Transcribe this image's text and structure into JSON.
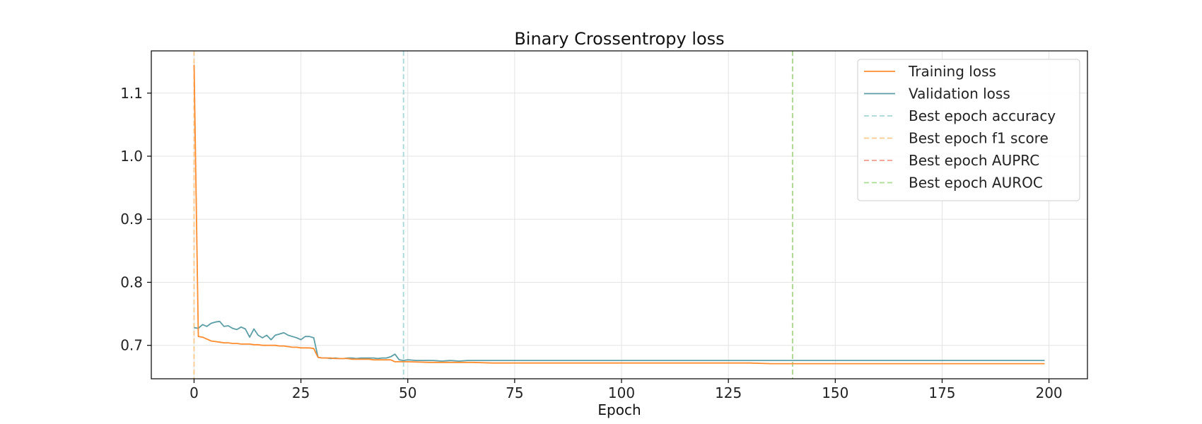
{
  "chart_data": {
    "type": "line",
    "title": "Binary Crossentropy loss",
    "xlabel": "Epoch",
    "ylabel": "",
    "xlim": [
      -10,
      209
    ],
    "ylim": [
      0.647,
      1.167
    ],
    "xticks": [
      0,
      25,
      50,
      75,
      100,
      125,
      150,
      175,
      200
    ],
    "yticks": [
      0.7,
      0.8,
      0.9,
      1.0,
      1.1
    ],
    "ytick_labels": [
      "0.7",
      "0.8",
      "0.9",
      "1.0",
      "1.1"
    ],
    "grid": true,
    "legend_position": "top-right",
    "series": [
      {
        "name": "Training loss",
        "color": "#ff8c2e",
        "x": [
          0,
          1,
          2,
          3,
          4,
          5,
          6,
          7,
          8,
          9,
          10,
          11,
          12,
          13,
          14,
          15,
          16,
          17,
          18,
          19,
          20,
          21,
          22,
          23,
          24,
          25,
          26,
          27,
          28,
          29,
          30,
          31,
          32,
          33,
          34,
          35,
          36,
          37,
          38,
          39,
          40,
          41,
          42,
          43,
          44,
          45,
          46,
          47,
          48,
          49,
          50,
          55,
          60,
          65,
          70,
          75,
          80,
          85,
          90,
          95,
          100,
          105,
          110,
          115,
          120,
          125,
          130,
          135,
          140,
          145,
          150,
          155,
          160,
          165,
          170,
          175,
          180,
          185,
          190,
          195,
          199
        ],
        "y": [
          1.145,
          0.714,
          0.713,
          0.71,
          0.707,
          0.706,
          0.705,
          0.704,
          0.704,
          0.703,
          0.703,
          0.702,
          0.702,
          0.702,
          0.701,
          0.701,
          0.7,
          0.7,
          0.7,
          0.7,
          0.699,
          0.699,
          0.698,
          0.697,
          0.697,
          0.696,
          0.696,
          0.696,
          0.695,
          0.681,
          0.68,
          0.68,
          0.68,
          0.679,
          0.679,
          0.679,
          0.679,
          0.678,
          0.678,
          0.678,
          0.678,
          0.678,
          0.677,
          0.677,
          0.677,
          0.677,
          0.677,
          0.674,
          0.674,
          0.674,
          0.674,
          0.673,
          0.673,
          0.673,
          0.672,
          0.672,
          0.672,
          0.672,
          0.672,
          0.672,
          0.672,
          0.672,
          0.672,
          0.672,
          0.672,
          0.672,
          0.672,
          0.671,
          0.671,
          0.671,
          0.671,
          0.671,
          0.671,
          0.671,
          0.671,
          0.671,
          0.671,
          0.671,
          0.671,
          0.671,
          0.671
        ]
      },
      {
        "name": "Validation loss",
        "color": "#5b9ea6",
        "x": [
          0,
          1,
          2,
          3,
          4,
          5,
          6,
          7,
          8,
          9,
          10,
          11,
          12,
          13,
          14,
          15,
          16,
          17,
          18,
          19,
          20,
          21,
          22,
          23,
          24,
          25,
          26,
          27,
          28,
          29,
          30,
          31,
          32,
          33,
          34,
          35,
          36,
          37,
          38,
          39,
          40,
          41,
          42,
          43,
          44,
          45,
          46,
          47,
          48,
          49,
          50,
          52,
          54,
          56,
          58,
          60,
          62,
          64,
          66,
          68,
          70,
          75,
          80,
          85,
          90,
          95,
          100,
          105,
          110,
          115,
          120,
          125,
          130,
          135,
          140,
          145,
          150,
          155,
          160,
          165,
          170,
          175,
          180,
          185,
          190,
          195,
          199
        ],
        "y": [
          0.728,
          0.727,
          0.733,
          0.73,
          0.735,
          0.737,
          0.738,
          0.73,
          0.731,
          0.727,
          0.725,
          0.729,
          0.726,
          0.713,
          0.726,
          0.716,
          0.712,
          0.716,
          0.709,
          0.716,
          0.718,
          0.72,
          0.716,
          0.714,
          0.712,
          0.709,
          0.714,
          0.714,
          0.712,
          0.681,
          0.68,
          0.68,
          0.679,
          0.68,
          0.679,
          0.679,
          0.68,
          0.68,
          0.679,
          0.68,
          0.68,
          0.68,
          0.68,
          0.679,
          0.68,
          0.68,
          0.682,
          0.686,
          0.677,
          0.676,
          0.677,
          0.676,
          0.676,
          0.676,
          0.675,
          0.676,
          0.675,
          0.676,
          0.676,
          0.676,
          0.676,
          0.676,
          0.676,
          0.676,
          0.676,
          0.676,
          0.676,
          0.676,
          0.676,
          0.676,
          0.676,
          0.676,
          0.676,
          0.676,
          0.676,
          0.676,
          0.676,
          0.676,
          0.676,
          0.676,
          0.676,
          0.676,
          0.676,
          0.676,
          0.676,
          0.676,
          0.676
        ]
      }
    ],
    "vlines": [
      {
        "name": "Best epoch accuracy",
        "x": 49,
        "color": "#a8d8d8"
      },
      {
        "name": "Best epoch f1 score",
        "x": 0,
        "color": "#f9c98d"
      },
      {
        "name": "Best epoch AUPRC",
        "x": 140,
        "color": "#f29a8c"
      },
      {
        "name": "Best epoch AUROC",
        "x": 140,
        "color": "#a9dc91"
      }
    ]
  }
}
